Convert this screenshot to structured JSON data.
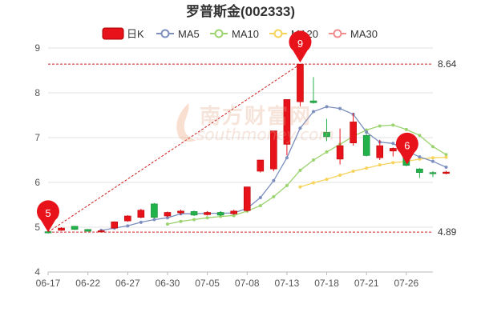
{
  "chart_data": {
    "type": "candlestick",
    "title": "罗普斯金(002333)",
    "legend": [
      "日K",
      "MA5",
      "MA10",
      "MA20",
      "MA30"
    ],
    "colors": {
      "up": "#e8121b",
      "down": "#21b24a",
      "ma5": "#7c8fbf",
      "ma10": "#9bd36f",
      "ma20": "#f7d35a",
      "ma30": "#f08d8d",
      "ref_line": "#d21d1d"
    },
    "y_ticks": [
      "4",
      "5",
      "6",
      "7",
      "8",
      "9"
    ],
    "ylim": [
      4,
      9
    ],
    "x_tick_labels": [
      {
        "index": 0,
        "label": "06-17"
      },
      {
        "index": 3,
        "label": "06-22"
      },
      {
        "index": 6,
        "label": "06-27"
      },
      {
        "index": 9,
        "label": "06-30"
      },
      {
        "index": 12,
        "label": "07-05"
      },
      {
        "index": 15,
        "label": "07-08"
      },
      {
        "index": 18,
        "label": "07-13"
      },
      {
        "index": 21,
        "label": "07-18"
      },
      {
        "index": 24,
        "label": "07-21"
      },
      {
        "index": 27,
        "label": "07-26"
      }
    ],
    "candles": [
      {
        "o": 4.9,
        "c": 4.89,
        "h": 4.93,
        "l": 4.86
      },
      {
        "o": 4.93,
        "c": 4.98,
        "h": 5.0,
        "l": 4.92
      },
      {
        "o": 5.02,
        "c": 4.95,
        "h": 5.03,
        "l": 4.94
      },
      {
        "o": 4.95,
        "c": 4.91,
        "h": 4.96,
        "l": 4.9
      },
      {
        "o": 4.91,
        "c": 4.92,
        "h": 4.94,
        "l": 4.9
      },
      {
        "o": 4.98,
        "c": 5.12,
        "h": 5.13,
        "l": 4.97
      },
      {
        "o": 5.14,
        "c": 5.25,
        "h": 5.27,
        "l": 5.12
      },
      {
        "o": 5.22,
        "c": 5.38,
        "h": 5.41,
        "l": 5.2
      },
      {
        "o": 5.52,
        "c": 5.22,
        "h": 5.54,
        "l": 5.2
      },
      {
        "o": 5.25,
        "c": 5.33,
        "h": 5.35,
        "l": 5.22
      },
      {
        "o": 5.32,
        "c": 5.36,
        "h": 5.39,
        "l": 5.28
      },
      {
        "o": 5.35,
        "c": 5.27,
        "h": 5.37,
        "l": 5.25
      },
      {
        "o": 5.28,
        "c": 5.33,
        "h": 5.36,
        "l": 5.26
      },
      {
        "o": 5.33,
        "c": 5.27,
        "h": 5.36,
        "l": 5.25
      },
      {
        "o": 5.3,
        "c": 5.36,
        "h": 5.39,
        "l": 5.28
      },
      {
        "o": 5.37,
        "c": 5.9,
        "h": 5.9,
        "l": 5.35
      },
      {
        "o": 6.25,
        "c": 6.5,
        "h": 6.5,
        "l": 6.22
      },
      {
        "o": 6.3,
        "c": 7.15,
        "h": 7.15,
        "l": 6.25
      },
      {
        "o": 6.85,
        "c": 7.85,
        "h": 7.85,
        "l": 6.6
      },
      {
        "o": 7.8,
        "c": 8.64,
        "h": 8.64,
        "l": 7.7
      },
      {
        "o": 7.82,
        "c": 7.78,
        "h": 8.35,
        "l": 7.76
      },
      {
        "o": 7.12,
        "c": 7.02,
        "h": 7.42,
        "l": 6.92
      },
      {
        "o": 6.52,
        "c": 6.82,
        "h": 7.2,
        "l": 6.4
      },
      {
        "o": 6.88,
        "c": 7.35,
        "h": 7.55,
        "l": 6.82
      },
      {
        "o": 7.05,
        "c": 6.6,
        "h": 7.08,
        "l": 6.58
      },
      {
        "o": 6.55,
        "c": 6.82,
        "h": 6.95,
        "l": 6.5
      },
      {
        "o": 6.7,
        "c": 6.76,
        "h": 6.78,
        "l": 6.58
      },
      {
        "o": 6.78,
        "c": 6.38,
        "h": 6.8,
        "l": 6.36
      },
      {
        "o": 6.3,
        "c": 6.22,
        "h": 6.32,
        "l": 6.1
      },
      {
        "o": 6.22,
        "c": 6.2,
        "h": 6.25,
        "l": 6.12
      },
      {
        "o": 6.2,
        "c": 6.23,
        "h": 6.26,
        "l": 6.18
      }
    ],
    "ma5": [
      null,
      null,
      null,
      null,
      4.93,
      4.98,
      5.03,
      5.11,
      5.17,
      5.21,
      5.3,
      5.3,
      5.31,
      5.31,
      5.32,
      5.42,
      5.66,
      6.04,
      6.55,
      7.21,
      7.58,
      7.69,
      7.65,
      7.52,
      7.12,
      6.9,
      6.87,
      6.7,
      6.57,
      6.47,
      6.34
    ],
    "ma10": [
      null,
      null,
      null,
      null,
      null,
      null,
      null,
      null,
      null,
      5.07,
      5.13,
      5.17,
      5.21,
      5.24,
      5.26,
      5.36,
      5.48,
      5.68,
      5.93,
      6.27,
      6.5,
      6.68,
      6.85,
      7.03,
      7.17,
      7.26,
      7.28,
      7.18,
      7.05,
      6.8,
      6.62
    ],
    "ma20": [
      null,
      null,
      null,
      null,
      null,
      null,
      null,
      null,
      null,
      null,
      null,
      null,
      null,
      null,
      null,
      null,
      null,
      null,
      null,
      5.9,
      5.99,
      6.07,
      6.16,
      6.25,
      6.32,
      6.39,
      6.44,
      6.47,
      6.52,
      6.55,
      6.56
    ],
    "annotations": {
      "high_value": "8.64",
      "low_value": "4.89",
      "high_marker": "9",
      "low_marker": "5",
      "last_marker": "6"
    }
  },
  "watermark": {
    "line1": "南方财富网",
    "line2": "southmoney.com"
  }
}
